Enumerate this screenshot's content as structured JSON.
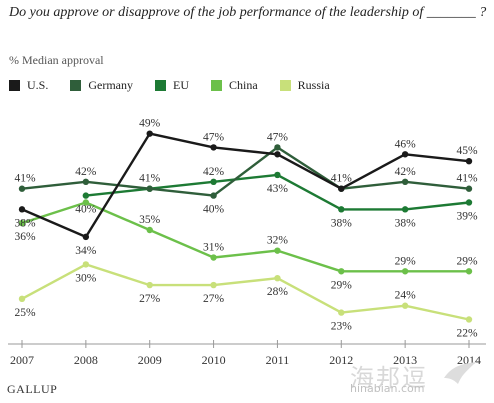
{
  "title": "Do you approve or disapprove of the job performance of the leadership of _______ ?",
  "subtitle": "% Median approval",
  "source": "GALLUP",
  "watermark": {
    "text": "海邦逗",
    "url": "hinabian.com"
  },
  "chart_data": {
    "type": "line",
    "x": [
      "2007",
      "2008",
      "2009",
      "2010",
      "2011",
      "2012",
      "2013",
      "2014"
    ],
    "ylim": [
      18,
      52
    ],
    "grid": false,
    "legend_position": "top",
    "series": [
      {
        "name": "U.S.",
        "color": "#1a1a1a",
        "values": [
          38,
          34,
          49,
          47,
          46,
          41,
          46,
          45
        ]
      },
      {
        "name": "Germany",
        "color": "#2f5e3a",
        "values": [
          41,
          42,
          41,
          40,
          47,
          41,
          42,
          41
        ]
      },
      {
        "name": "EU",
        "color": "#1d7a34",
        "values": [
          null,
          40,
          41,
          42,
          43,
          38,
          38,
          39
        ]
      },
      {
        "name": "China",
        "color": "#6cc04a",
        "values": [
          36,
          39,
          35,
          31,
          32,
          29,
          29,
          29
        ]
      },
      {
        "name": "Russia",
        "color": "#c8e07a",
        "values": [
          25,
          30,
          27,
          27,
          28,
          23,
          24,
          22
        ]
      }
    ],
    "data_labels": [
      {
        "series": "Germany",
        "index": 0,
        "text": "41%"
      },
      {
        "series": "U.S.",
        "index": 0,
        "text": "38%"
      },
      {
        "series": "China",
        "index": 0,
        "text": "36%"
      },
      {
        "series": "Russia",
        "index": 0,
        "text": "25%"
      },
      {
        "series": "Germany",
        "index": 1,
        "text": "42%"
      },
      {
        "series": "EU",
        "index": 1,
        "text": "40%"
      },
      {
        "series": "U.S.",
        "index": 1,
        "text": "34%"
      },
      {
        "series": "Russia",
        "index": 1,
        "text": "30%"
      },
      {
        "series": "U.S.",
        "index": 2,
        "text": "49%"
      },
      {
        "series": "EU",
        "index": 2,
        "text": "41%"
      },
      {
        "series": "China",
        "index": 2,
        "text": "35%"
      },
      {
        "series": "Russia",
        "index": 2,
        "text": "27%"
      },
      {
        "series": "U.S.",
        "index": 3,
        "text": "47%"
      },
      {
        "series": "EU",
        "index": 3,
        "text": "42%"
      },
      {
        "series": "Germany",
        "index": 3,
        "text": "40%"
      },
      {
        "series": "China",
        "index": 3,
        "text": "31%"
      },
      {
        "series": "Russia",
        "index": 3,
        "text": "27%"
      },
      {
        "series": "Germany",
        "index": 4,
        "text": "47%"
      },
      {
        "series": "EU",
        "index": 4,
        "text": "43%"
      },
      {
        "series": "China",
        "index": 4,
        "text": "32%"
      },
      {
        "series": "Russia",
        "index": 4,
        "text": "28%"
      },
      {
        "series": "U.S.",
        "index": 5,
        "text": "41%"
      },
      {
        "series": "EU",
        "index": 5,
        "text": "38%"
      },
      {
        "series": "China",
        "index": 5,
        "text": "29%"
      },
      {
        "series": "Russia",
        "index": 5,
        "text": "23%"
      },
      {
        "series": "U.S.",
        "index": 6,
        "text": "46%"
      },
      {
        "series": "Germany",
        "index": 6,
        "text": "42%"
      },
      {
        "series": "EU",
        "index": 6,
        "text": "38%"
      },
      {
        "series": "China",
        "index": 6,
        "text": "29%"
      },
      {
        "series": "Russia",
        "index": 6,
        "text": "24%"
      },
      {
        "series": "U.S.",
        "index": 7,
        "text": "45%"
      },
      {
        "series": "Germany",
        "index": 7,
        "text": "41%"
      },
      {
        "series": "EU",
        "index": 7,
        "text": "39%"
      },
      {
        "series": "China",
        "index": 7,
        "text": "29%"
      },
      {
        "series": "Russia",
        "index": 7,
        "text": "22%"
      }
    ]
  }
}
